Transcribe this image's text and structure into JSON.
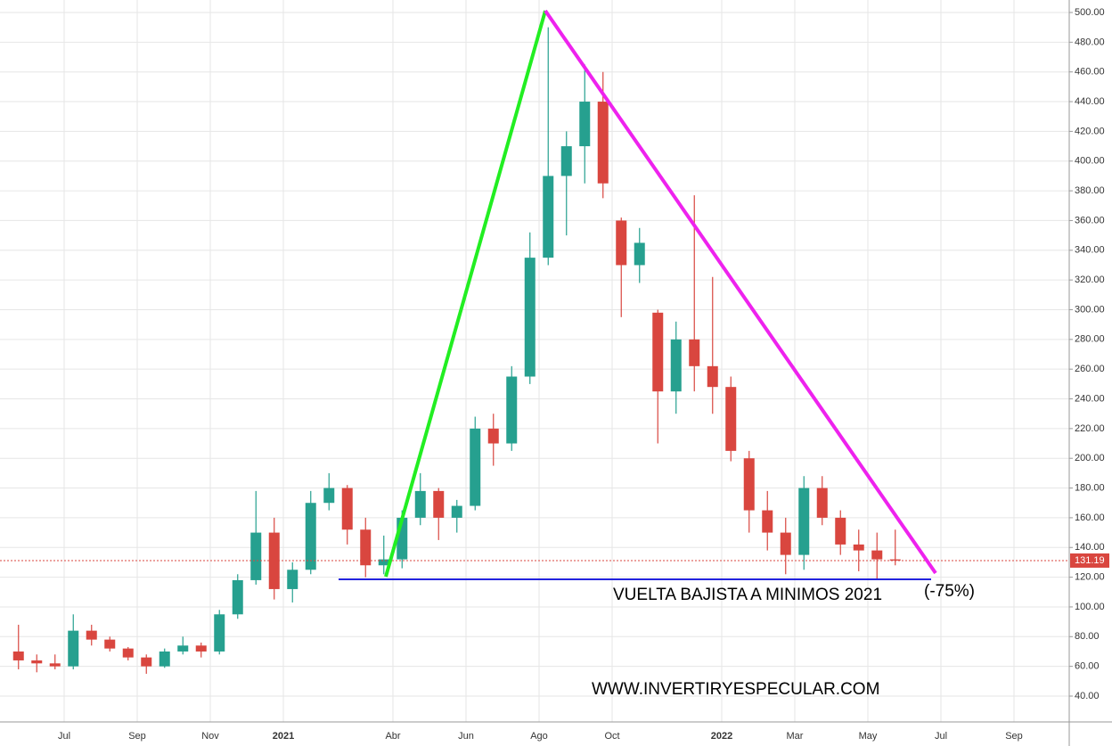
{
  "chart_data": {
    "type": "candlestick",
    "categories": [
      null,
      null,
      null,
      "Jul",
      null,
      null,
      null,
      "Sep",
      null,
      null,
      null,
      "Nov",
      null,
      null,
      null,
      "2021",
      null,
      null,
      null,
      null,
      null,
      "Abr",
      null,
      null,
      null,
      "Jun",
      null,
      null,
      null,
      "Ago",
      null,
      null,
      null,
      "Oct",
      null,
      null,
      null,
      null,
      null,
      "2022",
      null,
      null,
      null,
      "Mar",
      null,
      null,
      null,
      "May",
      null,
      null,
      null,
      "Jul",
      null,
      null,
      null,
      "Sep",
      null,
      null
    ],
    "open": [
      70,
      64,
      62,
      60,
      84,
      78,
      72,
      66,
      60,
      70,
      74,
      70,
      95,
      118,
      150,
      112,
      125,
      170,
      180,
      152,
      128,
      132,
      160,
      178,
      160,
      168,
      220,
      210,
      255,
      335,
      390,
      410,
      440,
      360,
      330,
      298,
      245,
      280,
      262,
      248,
      200,
      165,
      150,
      135,
      180,
      160,
      142,
      138,
      132,
      null,
      null,
      null,
      null,
      null,
      null,
      null,
      null,
      null
    ],
    "high": [
      88,
      68,
      68,
      95,
      88,
      80,
      73,
      68,
      72,
      80,
      76,
      98,
      122,
      178,
      160,
      130,
      178,
      190,
      182,
      160,
      148,
      165,
      190,
      180,
      172,
      228,
      230,
      262,
      352,
      490,
      420,
      465,
      460,
      362,
      355,
      300,
      292,
      377,
      322,
      255,
      205,
      178,
      160,
      188,
      188,
      165,
      152,
      150,
      152,
      null,
      null,
      null,
      null,
      null,
      null,
      null,
      null,
      null
    ],
    "low": [
      58,
      56,
      58,
      58,
      74,
      70,
      64,
      55,
      59,
      68,
      66,
      68,
      92,
      115,
      105,
      103,
      122,
      165,
      142,
      120,
      122,
      126,
      155,
      145,
      150,
      165,
      195,
      205,
      250,
      330,
      350,
      385,
      375,
      295,
      318,
      210,
      230,
      245,
      230,
      198,
      150,
      138,
      122,
      125,
      155,
      135,
      124,
      118,
      128,
      null,
      null,
      null,
      null,
      null,
      null,
      null,
      null,
      null
    ],
    "close": [
      64,
      62,
      60,
      84,
      78,
      72,
      66,
      60,
      70,
      74,
      70,
      95,
      118,
      150,
      112,
      125,
      170,
      180,
      152,
      128,
      132,
      160,
      178,
      160,
      168,
      220,
      210,
      255,
      335,
      390,
      410,
      440,
      385,
      330,
      345,
      245,
      280,
      262,
      248,
      205,
      165,
      150,
      135,
      180,
      160,
      142,
      138,
      132,
      131.19,
      null,
      null,
      null,
      null,
      null,
      null,
      null,
      null,
      null
    ],
    "up_color": "#26a08f",
    "down_color": "#d9463f",
    "ylim": [
      22.6,
      508.4
    ],
    "yticks": [
      {
        "value": 40,
        "label": "40.00"
      },
      {
        "value": 60,
        "label": "60.00"
      },
      {
        "value": 80,
        "label": "80.00"
      },
      {
        "value": 100,
        "label": "100.00"
      },
      {
        "value": 120,
        "label": "120.00"
      },
      {
        "value": 140,
        "label": "140.00"
      },
      {
        "value": 160,
        "label": "160.00"
      },
      {
        "value": 180,
        "label": "180.00"
      },
      {
        "value": 200,
        "label": "200.00"
      },
      {
        "value": 220,
        "label": "220.00"
      },
      {
        "value": 240,
        "label": "240.00"
      },
      {
        "value": 260,
        "label": "260.00"
      },
      {
        "value": 280,
        "label": "280.00"
      },
      {
        "value": 300,
        "label": "300.00"
      },
      {
        "value": 320,
        "label": "320.00"
      },
      {
        "value": 340,
        "label": "340.00"
      },
      {
        "value": 360,
        "label": "360.00"
      },
      {
        "value": 380,
        "label": "380.00"
      },
      {
        "value": 400,
        "label": "400.00"
      },
      {
        "value": 420,
        "label": "420.00"
      },
      {
        "value": 440,
        "label": "440.00"
      },
      {
        "value": 460,
        "label": "460.00"
      },
      {
        "value": 480,
        "label": "480.00"
      },
      {
        "value": 500,
        "label": "500.00"
      }
    ],
    "grid": true,
    "annotations": [
      "VUELTA BAJISTA A MINIMOS 2021",
      "(-75%)",
      "WWW.INVERTIRYESPECULAR.COM"
    ]
  }
}
